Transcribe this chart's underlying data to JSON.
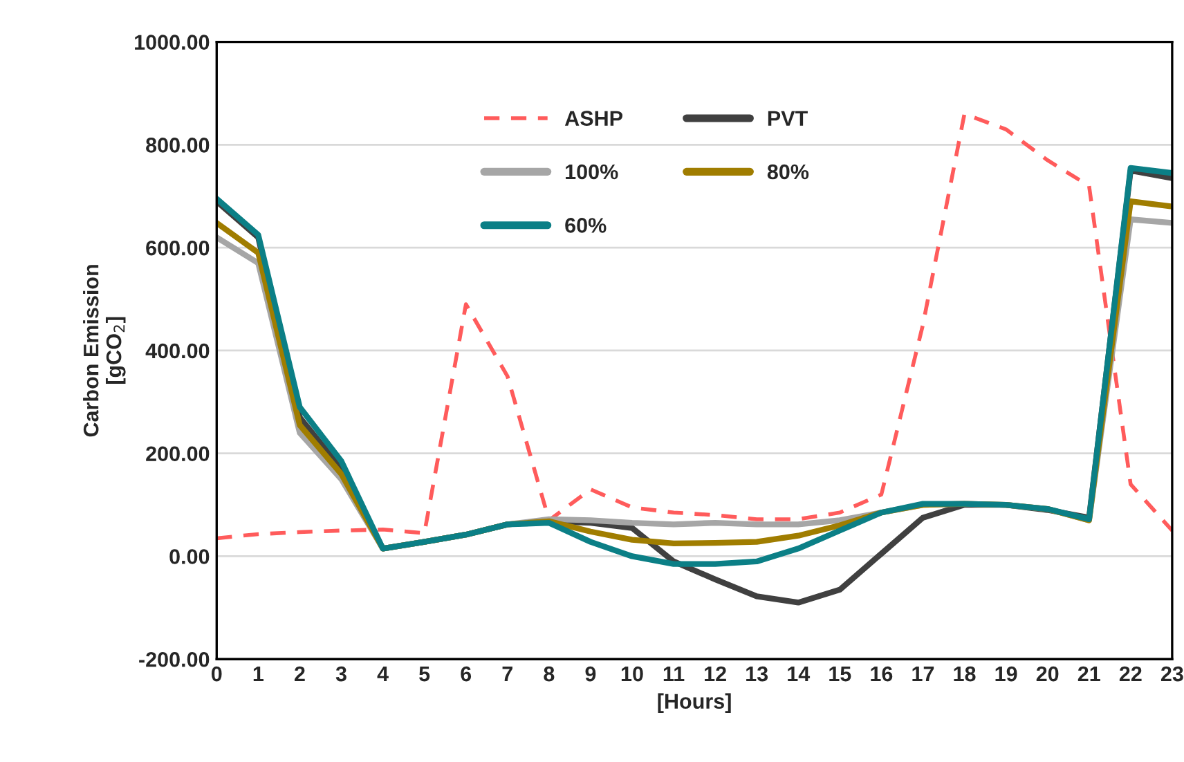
{
  "chart_data": {
    "type": "line",
    "xlabel": "[Hours]",
    "ylabel": "Carbon Emission\n[gCO$_{2}$]",
    "x": [
      0,
      1,
      2,
      3,
      4,
      5,
      6,
      7,
      8,
      9,
      10,
      11,
      12,
      13,
      14,
      15,
      16,
      17,
      18,
      19,
      20,
      21,
      22,
      23
    ],
    "xlim": [
      0,
      23
    ],
    "xticks": [
      0,
      1,
      2,
      3,
      4,
      5,
      6,
      7,
      8,
      9,
      10,
      11,
      12,
      13,
      14,
      15,
      16,
      17,
      18,
      19,
      20,
      21,
      22,
      23
    ],
    "ylim": [
      -200,
      1000
    ],
    "yticks": [
      {
        "value": -200,
        "label": "-200.00"
      },
      {
        "value": 0,
        "label": "0.00"
      },
      {
        "value": 200,
        "label": "200.00"
      },
      {
        "value": 400,
        "label": "400.00"
      },
      {
        "value": 600,
        "label": "600.00"
      },
      {
        "value": 800,
        "label": "800.00"
      },
      {
        "value": 1000,
        "label": "1000.00"
      }
    ],
    "grid": "y",
    "legend": "top",
    "marker": "none",
    "series": [
      {
        "name": "ASHP",
        "color": "#ff5b5b",
        "line_style": "dashed",
        "values": [
          35,
          43,
          47,
          50,
          52,
          45,
          490,
          350,
          70,
          130,
          95,
          85,
          80,
          72,
          72,
          85,
          120,
          450,
          860,
          830,
          770,
          720,
          140,
          50
        ]
      },
      {
        "name": "PVT",
        "color": "#404040",
        "line_style": "solid",
        "values": [
          690,
          620,
          270,
          170,
          15,
          28,
          42,
          62,
          68,
          65,
          55,
          -10,
          -45,
          -78,
          -90,
          -65,
          5,
          75,
          100,
          100,
          90,
          75,
          750,
          735
        ]
      },
      {
        "name": "100%",
        "color": "#a6a6a6",
        "line_style": "solid",
        "values": [
          620,
          570,
          240,
          150,
          15,
          28,
          42,
          62,
          72,
          70,
          65,
          62,
          65,
          62,
          62,
          70,
          85,
          100,
          102,
          100,
          92,
          70,
          655,
          648
        ]
      },
      {
        "name": "80%",
        "color": "#a07d00",
        "line_style": "solid",
        "values": [
          648,
          590,
          255,
          160,
          15,
          28,
          42,
          62,
          68,
          48,
          32,
          25,
          26,
          28,
          40,
          60,
          85,
          100,
          102,
          100,
          92,
          70,
          690,
          680
        ]
      },
      {
        "name": "60%",
        "color": "#0b7f86",
        "line_style": "solid",
        "values": [
          695,
          625,
          290,
          185,
          15,
          28,
          42,
          62,
          65,
          28,
          0,
          -15,
          -15,
          -10,
          15,
          50,
          85,
          102,
          102,
          100,
          92,
          72,
          755,
          745
        ]
      }
    ]
  }
}
